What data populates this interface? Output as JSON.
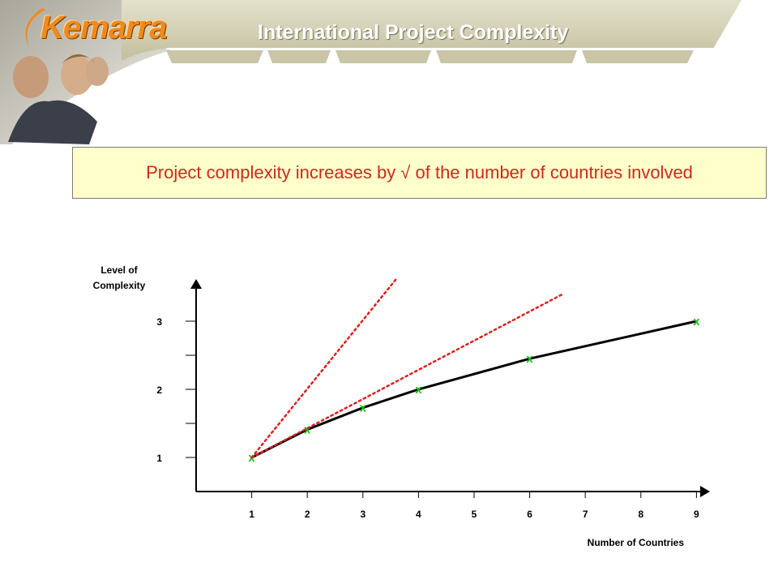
{
  "header": {
    "logo_text": "Kemarra",
    "title": "International Project Complexity"
  },
  "headline": "Project complexity increases by √ of the number of countries involved",
  "colors": {
    "header_band": "#d6d4b8",
    "headline_bg": "#ffffcc",
    "headline_text": "#cc2a1a",
    "curve": "#000000",
    "reference_lines": "#dd2020",
    "markers": "#19c019"
  },
  "chart_data": {
    "type": "line",
    "ylabel_lines": [
      "Level of",
      "Complexity"
    ],
    "xlabel": "Number of Countries",
    "x_ticks": [
      1,
      2,
      3,
      4,
      5,
      6,
      7,
      8,
      9
    ],
    "y_ticks": [
      1,
      2,
      3
    ],
    "y_minor_ticks": [
      1.5,
      2.5
    ],
    "xlim": [
      0,
      9.3
    ],
    "ylim": [
      0.5,
      3.65
    ],
    "grid": false,
    "series": [
      {
        "style": "solid-line-with-x-markers",
        "x": [
          1,
          2,
          3,
          4,
          6,
          9
        ],
        "y": [
          1,
          1.41,
          1.73,
          2,
          2.45,
          3
        ],
        "marker": "x"
      },
      {
        "style": "red-dotted-line",
        "x": [
          1,
          3.6
        ],
        "y": [
          1,
          3.62
        ]
      },
      {
        "style": "red-dotted-line",
        "x": [
          1,
          6.6
        ],
        "y": [
          1,
          3.4
        ]
      }
    ]
  }
}
